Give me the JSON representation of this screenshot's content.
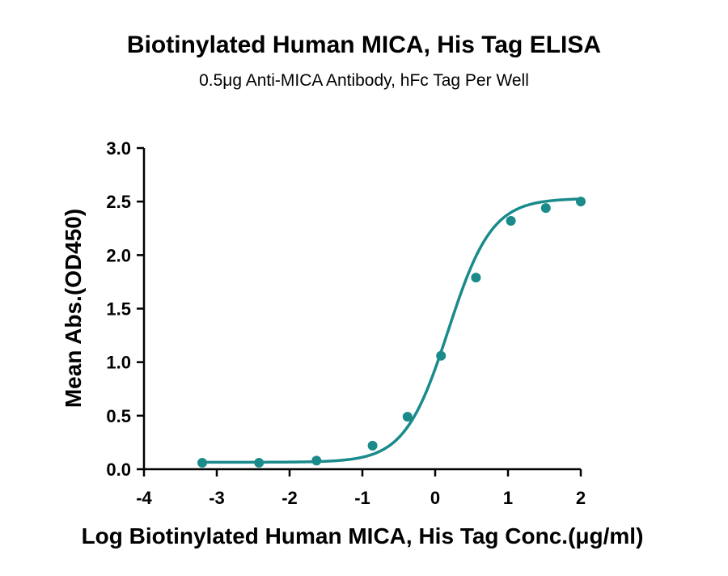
{
  "chart_data": {
    "type": "scatter",
    "title": "Biotinylated Human MICA, His Tag ELISA",
    "subtitle": "0.5μg Anti-MICA Antibody, hFc Tag Per Well",
    "xlabel": "Log Biotinylated Human MICA, His Tag Conc.(μg/ml)",
    "ylabel": "Mean Abs.(OD450)",
    "xlim": [
      -4,
      2
    ],
    "ylim": [
      0,
      3
    ],
    "x_ticks": [
      -4,
      -3,
      -2,
      -1,
      0,
      1,
      2
    ],
    "x_tick_labels": [
      "-4",
      "-3",
      "-2",
      "-1",
      "0",
      "1",
      "2"
    ],
    "y_ticks": [
      0,
      0.5,
      1,
      1.5,
      2,
      2.5,
      3
    ],
    "y_tick_labels": [
      "0.0",
      "0.5",
      "1.0",
      "1.5",
      "2.0",
      "2.5",
      "3.0"
    ],
    "grid": false,
    "series": [
      {
        "color": "#1a8a8a",
        "points": [
          {
            "x": -3.2,
            "y": 0.06
          },
          {
            "x": -2.42,
            "y": 0.06
          },
          {
            "x": -1.63,
            "y": 0.08
          },
          {
            "x": -0.86,
            "y": 0.22
          },
          {
            "x": -0.38,
            "y": 0.49
          },
          {
            "x": 0.08,
            "y": 1.06
          },
          {
            "x": 0.56,
            "y": 1.79
          },
          {
            "x": 1.04,
            "y": 2.32
          },
          {
            "x": 1.52,
            "y": 2.44
          },
          {
            "x": 2.0,
            "y": 2.5
          }
        ],
        "fit": {
          "model": "4PL",
          "bottom": 0.065,
          "top": 2.53,
          "log_ec50": 0.18,
          "hill_slope": 1.45
        }
      }
    ]
  }
}
